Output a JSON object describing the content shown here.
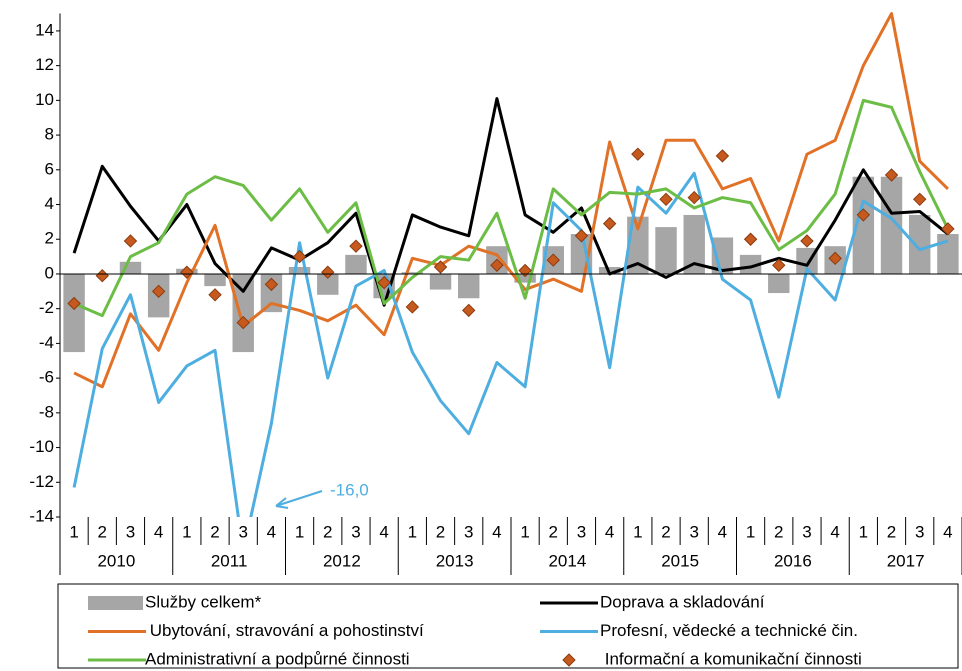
{
  "chart_data": {
    "type": "combo",
    "categories": [
      "1",
      "2",
      "3",
      "4",
      "1",
      "2",
      "3",
      "4",
      "1",
      "2",
      "3",
      "4",
      "1",
      "2",
      "3",
      "4",
      "1",
      "2",
      "3",
      "4",
      "1",
      "2",
      "3",
      "4",
      "1",
      "2",
      "3",
      "4",
      "1",
      "2",
      "3",
      "4"
    ],
    "category_groups": [
      "2010",
      "2011",
      "2012",
      "2013",
      "2014",
      "2015",
      "2016",
      "2017"
    ],
    "ylim": [
      -14,
      15
    ],
    "yticks": [
      -14,
      -12,
      -10,
      -8,
      -6,
      -4,
      -2,
      0,
      2,
      4,
      6,
      8,
      10,
      12,
      14
    ],
    "annotation": "-16,0",
    "series": [
      {
        "name": "Služby celkem*",
        "kind": "bar",
        "color": "#a6a6a6",
        "values": [
          -4.5,
          0,
          0.7,
          -2.5,
          0.3,
          -0.7,
          -4.5,
          -2.2,
          0.4,
          -1.2,
          1.1,
          -1.4,
          0.1,
          -0.9,
          -1.4,
          1.6,
          -0.5,
          1.6,
          2.3,
          0.4,
          3.3,
          2.7,
          3.4,
          2.1,
          1.1,
          -1.1,
          1.5,
          1.6,
          5.6,
          5.6,
          3.4,
          2.3
        ]
      },
      {
        "name": "Doprava a skladování",
        "kind": "line",
        "color": "#000000",
        "values": [
          1.2,
          6.2,
          3.9,
          1.9,
          4.0,
          0.6,
          -1.0,
          1.5,
          0.8,
          1.8,
          3.5,
          -1.8,
          3.4,
          2.7,
          2.2,
          10.1,
          3.4,
          2.4,
          3.8,
          0.0,
          0.6,
          -0.2,
          0.6,
          0.2,
          0.4,
          0.9,
          0.5,
          3.1,
          6.0,
          3.5,
          3.6,
          2.3
        ]
      },
      {
        "name": " Ubytování, stravování a pohostinství",
        "kind": "line",
        "color": "#e07126",
        "values": [
          -5.7,
          -6.5,
          -2.3,
          -4.4,
          -0.5,
          2.8,
          -3.0,
          -1.7,
          -2.1,
          -2.7,
          -1.8,
          -3.5,
          0.9,
          0.5,
          1.6,
          1.1,
          -0.9,
          -0.3,
          -1.0,
          7.6,
          2.6,
          7.7,
          7.7,
          4.9,
          5.5,
          1.9,
          6.9,
          7.7,
          12.0,
          15.0,
          6.5,
          4.9
        ]
      },
      {
        "name": "Profesní, vědecké a technické čin.",
        "kind": "line",
        "color": "#4eaee0",
        "values": [
          -12.3,
          -4.3,
          -1.2,
          -7.4,
          -5.3,
          -4.4,
          -16.0,
          -8.6,
          1.8,
          -6.0,
          -0.7,
          0.2,
          -4.5,
          -7.3,
          -9.2,
          -5.1,
          -6.5,
          4.1,
          2.5,
          -5.4,
          5.0,
          3.5,
          5.8,
          -0.3,
          -1.5,
          -7.1,
          0.3,
          -1.5,
          4.2,
          3.2,
          1.4,
          1.9
        ]
      },
      {
        "name": "Administrativní a podpůrné činnosti",
        "kind": "line",
        "color": "#6cbd45",
        "values": [
          -1.7,
          -2.4,
          1.0,
          1.8,
          4.6,
          5.6,
          5.1,
          3.1,
          4.9,
          2.4,
          4.1,
          -1.7,
          -0.2,
          1.0,
          0.8,
          3.5,
          -1.4,
          4.9,
          3.4,
          4.7,
          4.6,
          4.9,
          3.8,
          4.4,
          4.1,
          1.4,
          2.5,
          4.6,
          10.0,
          9.6,
          5.9,
          2.6
        ]
      },
      {
        "name": " Informační a komunikační činnosti",
        "kind": "marker",
        "color": "#c65a1e",
        "values": [
          -1.7,
          -0.1,
          1.9,
          -1.0,
          0.1,
          -1.2,
          -2.8,
          -0.6,
          1.0,
          0.1,
          1.6,
          -0.5,
          -1.9,
          0.4,
          -2.1,
          0.5,
          0.2,
          0.8,
          2.2,
          2.9,
          6.9,
          4.3,
          4.4,
          6.8,
          2.0,
          0.5,
          1.9,
          0.9,
          3.4,
          5.7,
          4.3,
          2.6
        ]
      }
    ]
  }
}
